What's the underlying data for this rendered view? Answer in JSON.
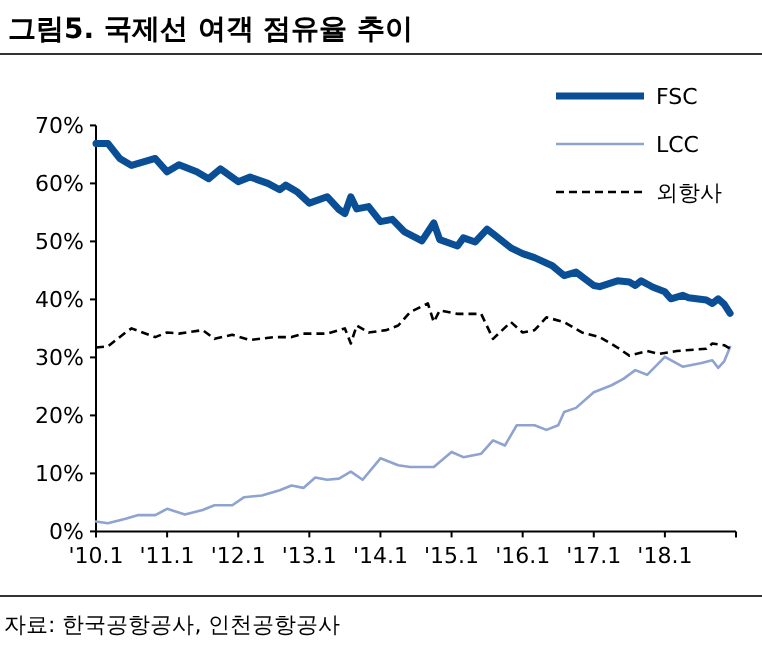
{
  "chart_data": {
    "type": "line",
    "title": "그림5. 국제선 여객 점유율 추이",
    "xlim": [
      "2010-01",
      "2019-01"
    ],
    "xticks": [
      {
        "value": "2010-01",
        "label": "'10.1"
      },
      {
        "value": "2011-01",
        "label": "'11.1"
      },
      {
        "value": "2012-01",
        "label": "'12.1"
      },
      {
        "value": "2013-01",
        "label": "'13.1"
      },
      {
        "value": "2014-01",
        "label": "'14.1"
      },
      {
        "value": "2015-01",
        "label": "'15.1"
      },
      {
        "value": "2016-01",
        "label": "'16.1"
      },
      {
        "value": "2017-01",
        "label": "'17.1"
      },
      {
        "value": "2018-01",
        "label": "'18.1"
      }
    ],
    "ylim": [
      0,
      70
    ],
    "yticks": [
      {
        "value": 0,
        "label": "0%"
      },
      {
        "value": 10,
        "label": "10%"
      },
      {
        "value": 20,
        "label": "20%"
      },
      {
        "value": 30,
        "label": "30%"
      },
      {
        "value": 40,
        "label": "40%"
      },
      {
        "value": 50,
        "label": "50%"
      },
      {
        "value": 60,
        "label": "60%"
      },
      {
        "value": 70,
        "label": "70%"
      }
    ],
    "grid": false,
    "legend": "top right",
    "marker": "none",
    "series": [
      {
        "name": "FSC",
        "color": "#0a4f96",
        "line_style": "solid",
        "x": [
          "2010-01",
          "2010-03",
          "2010-05",
          "2010-07",
          "2010-11",
          "2011-01",
          "2011-03",
          "2011-06",
          "2011-08",
          "2011-10",
          "2012-01",
          "2012-03",
          "2012-06",
          "2012-08",
          "2012-09",
          "2012-11",
          "2013-01",
          "2013-04",
          "2013-06",
          "2013-07",
          "2013-08",
          "2013-09",
          "2013-11",
          "2014-01",
          "2014-03",
          "2014-05",
          "2014-08",
          "2014-10",
          "2014-11",
          "2015-02",
          "2015-03",
          "2015-05",
          "2015-07",
          "2015-08",
          "2015-11",
          "2016-01",
          "2016-03",
          "2016-06",
          "2016-08",
          "2016-10",
          "2017-01",
          "2017-02",
          "2017-05",
          "2017-07",
          "2017-08",
          "2017-09",
          "2017-11",
          "2018-01",
          "2018-02",
          "2018-04",
          "2018-05",
          "2018-08",
          "2018-09",
          "2018-10",
          "2018-11",
          "2018-12"
        ],
        "values": [
          66.9,
          66.9,
          64.3,
          63.1,
          64.3,
          62.0,
          63.2,
          62.0,
          60.8,
          62.5,
          60.3,
          61.1,
          60.0,
          58.9,
          59.7,
          58.5,
          56.6,
          57.7,
          55.5,
          54.8,
          57.7,
          55.6,
          56.0,
          53.4,
          53.8,
          51.7,
          50.1,
          53.2,
          50.3,
          49.2,
          50.6,
          49.9,
          52.1,
          51.3,
          48.9,
          47.9,
          47.2,
          45.8,
          44.1,
          44.7,
          42.4,
          42.2,
          43.2,
          43.0,
          42.4,
          43.2,
          42.1,
          41.3,
          40.1,
          40.7,
          40.3,
          39.9,
          39.3,
          40.1,
          39.2,
          37.6
        ]
      },
      {
        "name": "LCC",
        "color": "#8ea3d0",
        "line_style": "solid",
        "x": [
          "2010-01",
          "2010-03",
          "2010-06",
          "2010-08",
          "2010-11",
          "2011-01",
          "2011-04",
          "2011-07",
          "2011-09",
          "2011-12",
          "2012-02",
          "2012-05",
          "2012-08",
          "2012-10",
          "2012-12",
          "2013-02",
          "2013-04",
          "2013-06",
          "2013-08",
          "2013-10",
          "2014-01",
          "2014-04",
          "2014-06",
          "2014-10",
          "2015-01",
          "2015-03",
          "2015-06",
          "2015-08",
          "2015-10",
          "2015-12",
          "2016-03",
          "2016-05",
          "2016-07",
          "2016-08",
          "2016-10",
          "2017-01",
          "2017-04",
          "2017-06",
          "2017-08",
          "2017-10",
          "2018-01",
          "2018-04",
          "2018-07",
          "2018-09",
          "2018-10",
          "2018-11",
          "2018-12"
        ],
        "values": [
          1.7,
          1.4,
          2.2,
          2.8,
          2.8,
          3.9,
          2.9,
          3.7,
          4.5,
          4.5,
          5.9,
          6.2,
          7.1,
          7.9,
          7.5,
          9.3,
          8.9,
          9.1,
          10.3,
          8.9,
          12.6,
          11.4,
          11.1,
          11.1,
          13.7,
          12.8,
          13.4,
          15.7,
          14.8,
          18.3,
          18.3,
          17.5,
          18.3,
          20.6,
          21.3,
          24.0,
          25.2,
          26.3,
          27.8,
          27.0,
          30.1,
          28.4,
          29.0,
          29.5,
          28.2,
          29.3,
          31.8
        ]
      },
      {
        "name": "외항사",
        "color": "#000000",
        "line_style": "dashed",
        "x": [
          "2010-01",
          "2010-03",
          "2010-06",
          "2010-07",
          "2010-11",
          "2011-01",
          "2011-03",
          "2011-07",
          "2011-09",
          "2011-12",
          "2012-03",
          "2012-07",
          "2012-10",
          "2012-12",
          "2013-04",
          "2013-07",
          "2013-08",
          "2013-09",
          "2013-11",
          "2014-02",
          "2014-04",
          "2014-06",
          "2014-09",
          "2014-10",
          "2014-11",
          "2015-02",
          "2015-06",
          "2015-08",
          "2015-11",
          "2016-01",
          "2016-03",
          "2016-05",
          "2016-08",
          "2016-11",
          "2017-02",
          "2017-05",
          "2017-07",
          "2017-10",
          "2017-12",
          "2018-03",
          "2018-08",
          "2018-09",
          "2018-11",
          "2018-12"
        ],
        "values": [
          31.7,
          31.9,
          34.3,
          35.0,
          33.5,
          34.3,
          34.1,
          34.7,
          33.2,
          33.9,
          33.0,
          33.5,
          33.5,
          34.1,
          34.1,
          35.0,
          32.4,
          35.5,
          34.3,
          34.7,
          35.5,
          37.8,
          39.3,
          36.1,
          38.1,
          37.5,
          37.5,
          33.2,
          36.1,
          34.3,
          34.7,
          36.9,
          36.1,
          34.3,
          33.5,
          31.7,
          30.3,
          31.1,
          30.6,
          31.1,
          31.5,
          32.4,
          32.1,
          31.5
        ]
      }
    ],
    "annotations": [
      "자료: 한국공항공사, 인천공항공사"
    ]
  }
}
